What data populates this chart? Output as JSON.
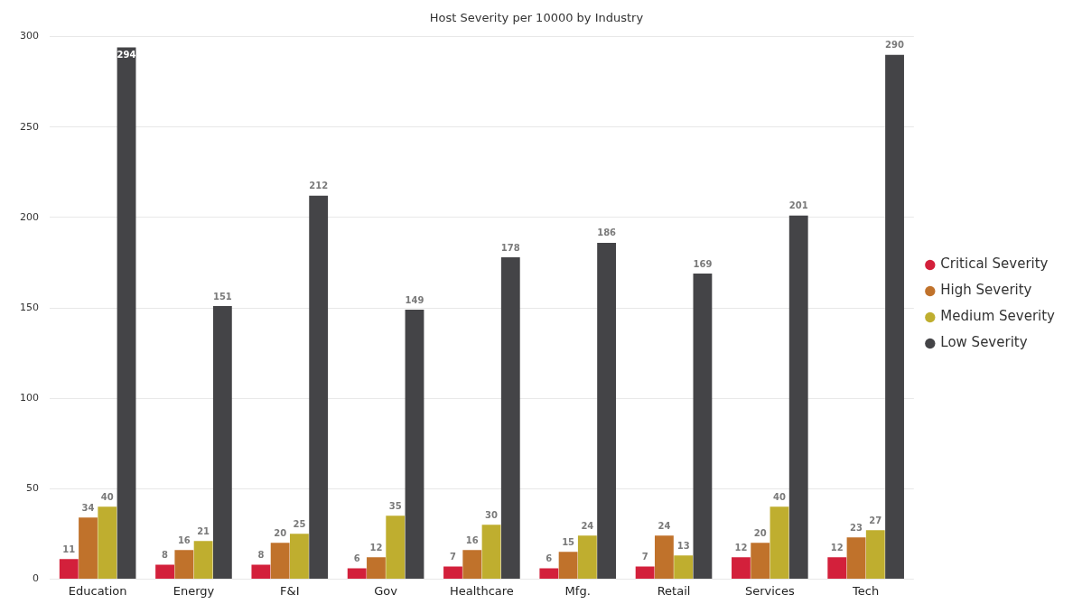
{
  "chart_data": {
    "type": "bar",
    "title": "Host Severity per 10000 by Industry",
    "categories": [
      "Education",
      "Energy",
      "F&I",
      "Gov",
      "Healthcare",
      "Mfg.",
      "Retail",
      "Services",
      "Tech"
    ],
    "series": [
      {
        "name": "Critical Severity",
        "color": "#d3203b",
        "values": [
          11,
          8,
          8,
          6,
          7,
          6,
          7,
          12,
          12
        ]
      },
      {
        "name": "High Severity",
        "color": "#c0722b",
        "values": [
          34,
          16,
          20,
          12,
          16,
          15,
          24,
          20,
          23
        ]
      },
      {
        "name": "Medium Severity",
        "color": "#bfae2f",
        "values": [
          40,
          21,
          25,
          35,
          30,
          24,
          13,
          40,
          27
        ]
      },
      {
        "name": "Low Severity",
        "color": "#444447",
        "values": [
          294,
          151,
          212,
          149,
          178,
          186,
          169,
          201,
          290
        ]
      }
    ],
    "ylim": [
      0,
      300
    ],
    "yticks": [
      0,
      50,
      100,
      150,
      200,
      250,
      300
    ],
    "grid": "y",
    "legend": "right",
    "data_labels": true
  }
}
